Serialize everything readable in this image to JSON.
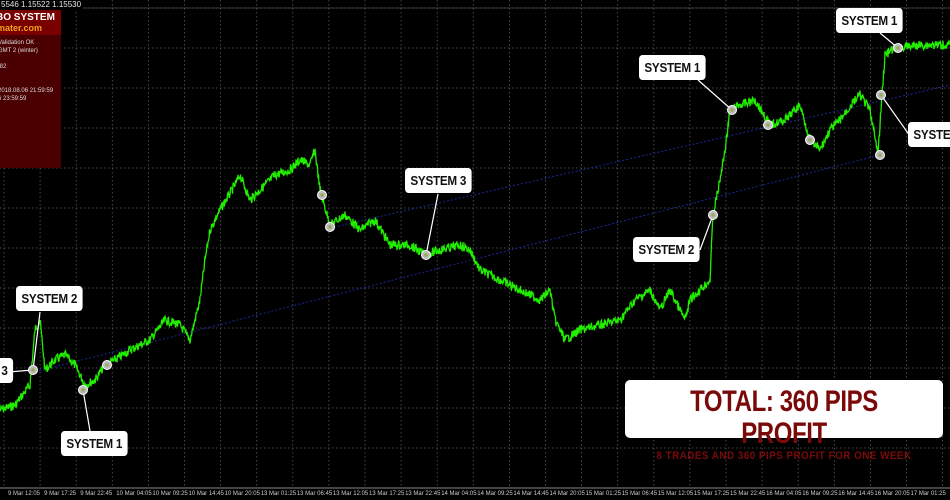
{
  "quote_bar": "5546 1.15522 1.15530",
  "panel": {
    "title": "BO SYSTEM",
    "site": "mater.com",
    "lines": [
      "Validation OK",
      "GMT 2 (winter)",
      "",
      ".82",
      "",
      "",
      "2018.08.06 21:59:59",
      "6 23:59:59"
    ]
  },
  "labels": [
    {
      "text": "3"
    },
    {
      "text": "SYSTEM 2"
    },
    {
      "text": "SYSTEM 1"
    },
    {
      "text": "SYSTEM 3"
    },
    {
      "text": "SYSTEM 2"
    },
    {
      "text": "SYSTEM 1"
    },
    {
      "text": "SYSTEM 1"
    },
    {
      "text": "SYSTEM"
    }
  ],
  "x_axis": [
    "9 Mar 12:05",
    "9 Mar 17:25",
    "9 Mar 22:45",
    "10 Mar 04:05",
    "10 Mar 09:25",
    "10 Mar 14:45",
    "10 Mar 20:05",
    "13 Mar 01:25",
    "13 Mar 06:45",
    "13 Mar 12:05",
    "13 Mar 17:25",
    "13 Mar 22:45",
    "14 Mar 04:05",
    "14 Mar 09:25",
    "14 Mar 14:45",
    "14 Mar 20:05",
    "15 Mar 01:25",
    "15 Mar 06:45",
    "15 Mar 12:05",
    "15 Mar 17:25",
    "15 Mar 22:45",
    "16 Mar 04:05",
    "16 Mar 09:25",
    "16 Mar 14:45",
    "16 Mar 20:05",
    "17 Mar 01:25"
  ],
  "total": {
    "headline": "TOTAL: 360 PIPS PROFIT",
    "subline": "8 TRADES AND 360 PIPS PROFIT FOR ONE WEEK"
  },
  "colors": {
    "price_line": "#22ee00",
    "trend_line": "#1a2a9a",
    "grid": "#5a5a5a",
    "panel": "#4a0000",
    "accent_text": "#7a0a0a"
  }
}
